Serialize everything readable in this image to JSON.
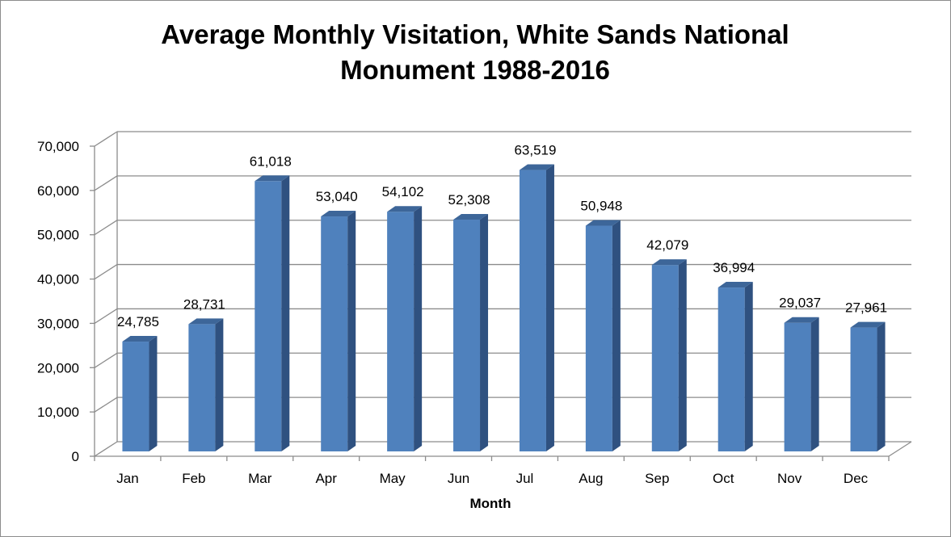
{
  "chart_data": {
    "type": "bar",
    "title_lines": [
      "Average Monthly Visitation, White Sands National",
      "Monument 1988-2016"
    ],
    "xlabel": "Month",
    "ylabel": "",
    "categories": [
      "Jan",
      "Feb",
      "Mar",
      "Apr",
      "May",
      "Jun",
      "Jul",
      "Aug",
      "Sep",
      "Oct",
      "Nov",
      "Dec"
    ],
    "values": [
      24785,
      28731,
      61018,
      53040,
      54102,
      52308,
      63519,
      50948,
      42079,
      36994,
      29037,
      27961
    ],
    "data_labels": [
      "24,785",
      "28,731",
      "61,018",
      "53,040",
      "54,102",
      "52,308",
      "63,519",
      "50,948",
      "42,079",
      "36,994",
      "29,037",
      "27,961"
    ],
    "yticks": [
      0,
      10000,
      20000,
      30000,
      40000,
      50000,
      60000,
      70000
    ],
    "ytick_labels": [
      "0",
      "10,000",
      "20,000",
      "30,000",
      "40,000",
      "50,000",
      "60,000",
      "70,000"
    ],
    "ylim": [
      0,
      70000
    ],
    "grid": true,
    "legend": "none",
    "three_d": true,
    "colors": {
      "bar_front": "#4f81bd",
      "bar_side": "#2f5180",
      "bar_top": "#3d6699",
      "grid": "#8c8c8c",
      "frame": "#8c8c8c"
    }
  }
}
